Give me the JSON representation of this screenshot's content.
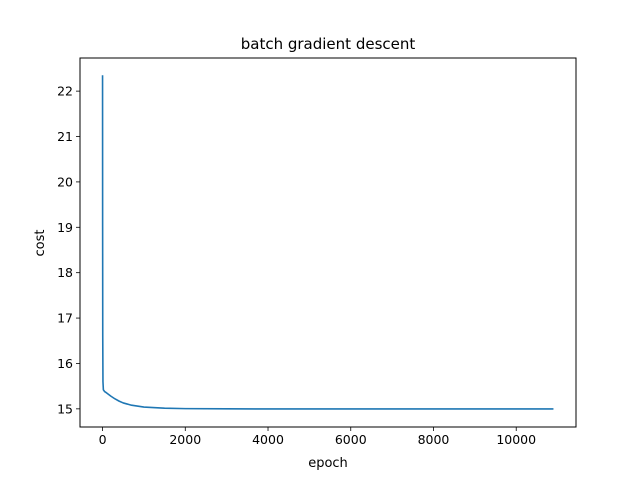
{
  "chart_data": {
    "type": "line",
    "title": "batch gradient descent",
    "xlabel": "epoch",
    "ylabel": "cost",
    "xlim": [
      -545,
      11445
    ],
    "ylim": [
      14.6,
      22.73
    ],
    "xticks": [
      0,
      2000,
      4000,
      6000,
      8000,
      10000
    ],
    "xtick_labels": [
      "0",
      "2000",
      "4000",
      "6000",
      "8000",
      "10000"
    ],
    "yticks": [
      15,
      16,
      17,
      18,
      19,
      20,
      21,
      22
    ],
    "ytick_labels": [
      "15",
      "16",
      "17",
      "18",
      "19",
      "20",
      "21",
      "22"
    ],
    "grid": false,
    "legend": "none",
    "series": [
      {
        "color": "#1f77b4",
        "x": [
          0,
          2,
          5,
          10,
          20,
          50,
          100,
          200,
          300,
          400,
          500,
          700,
          1000,
          1500,
          2000,
          3000,
          4000,
          6000,
          8000,
          10900
        ],
        "y": [
          22.35,
          19.0,
          16.6,
          15.6,
          15.42,
          15.38,
          15.35,
          15.28,
          15.22,
          15.17,
          15.13,
          15.08,
          15.04,
          15.015,
          15.005,
          15.0,
          14.998,
          14.998,
          14.998,
          14.998
        ]
      }
    ]
  }
}
